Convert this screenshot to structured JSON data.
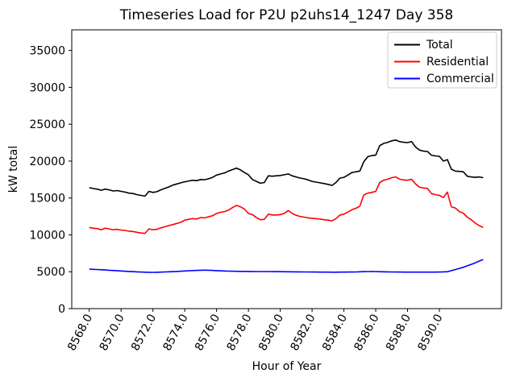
{
  "chart_data": {
    "type": "line",
    "title": "Timeseries Load for P2U p2uhs14_1247  Day 358",
    "xlabel": "Hour of Year",
    "ylabel": "kW total",
    "xlim": [
      8566.9,
      8593.9
    ],
    "ylim": [
      0,
      37800
    ],
    "grid": false,
    "legend_position": "upper right",
    "xtick_values": [
      8568,
      8570,
      8572,
      8574,
      8576,
      8578,
      8580,
      8582,
      8584,
      8586,
      8588,
      8590
    ],
    "xtick_labels": [
      "8568.0",
      "8570.0",
      "8572.0",
      "8574.0",
      "8576.0",
      "8578.0",
      "8580.0",
      "8582.0",
      "8584.0",
      "8586.0",
      "8588.0",
      "8590.0"
    ],
    "ytick_values": [
      0,
      5000,
      10000,
      15000,
      20000,
      25000,
      30000,
      35000
    ],
    "ytick_labels": [
      "0",
      "5000",
      "10000",
      "15000",
      "20000",
      "25000",
      "30000",
      "35000"
    ],
    "x": [
      8568.0,
      8568.25,
      8568.5,
      8568.75,
      8569.0,
      8569.25,
      8569.5,
      8569.75,
      8570.0,
      8570.25,
      8570.5,
      8570.75,
      8571.0,
      8571.25,
      8571.5,
      8571.75,
      8572.0,
      8572.25,
      8572.5,
      8572.75,
      8573.0,
      8573.25,
      8573.5,
      8573.75,
      8574.0,
      8574.25,
      8574.5,
      8574.75,
      8575.0,
      8575.25,
      8575.5,
      8575.75,
      8576.0,
      8576.25,
      8576.5,
      8576.75,
      8577.0,
      8577.25,
      8577.5,
      8577.75,
      8578.0,
      8578.25,
      8578.5,
      8578.75,
      8579.0,
      8579.25,
      8579.5,
      8579.75,
      8580.0,
      8580.25,
      8580.5,
      8580.75,
      8581.0,
      8581.25,
      8581.5,
      8581.75,
      8582.0,
      8582.25,
      8582.5,
      8582.75,
      8583.0,
      8583.25,
      8583.5,
      8583.75,
      8584.0,
      8584.25,
      8584.5,
      8584.75,
      8585.0,
      8585.25,
      8585.5,
      8585.75,
      8586.0,
      8586.25,
      8586.5,
      8586.75,
      8587.0,
      8587.25,
      8587.5,
      8587.75,
      8588.0,
      8588.25,
      8588.5,
      8588.75,
      8589.0,
      8589.25,
      8589.5,
      8589.75,
      8590.0,
      8590.25,
      8590.5,
      8590.75,
      8591.0,
      8591.25,
      8591.5,
      8591.75,
      8592.0,
      8592.25,
      8592.5,
      8592.75
    ],
    "series": [
      {
        "name": "Total",
        "color": "#000000",
        "values": [
          16400,
          16280,
          16200,
          16050,
          16200,
          16100,
          15950,
          16000,
          15900,
          15800,
          15650,
          15600,
          15450,
          15350,
          15250,
          15900,
          15750,
          15850,
          16100,
          16300,
          16500,
          16750,
          16900,
          17050,
          17200,
          17300,
          17400,
          17350,
          17500,
          17480,
          17600,
          17800,
          18100,
          18250,
          18400,
          18650,
          18850,
          19050,
          18800,
          18450,
          18150,
          17500,
          17250,
          17000,
          17100,
          18000,
          17950,
          18000,
          18050,
          18150,
          18250,
          18000,
          17850,
          17700,
          17600,
          17450,
          17250,
          17150,
          17050,
          16950,
          16850,
          16700,
          17100,
          17700,
          17800,
          18100,
          18450,
          18550,
          18650,
          19900,
          20600,
          20750,
          20800,
          22100,
          22400,
          22550,
          22750,
          22850,
          22650,
          22550,
          22500,
          22650,
          21900,
          21500,
          21350,
          21300,
          20800,
          20700,
          20650,
          20000,
          20200,
          18900,
          18650,
          18600,
          18550,
          17950,
          17850,
          17800,
          17850,
          17750
        ]
      },
      {
        "name": "Residential",
        "color": "#ff0000",
        "values": [
          11000,
          10900,
          10850,
          10700,
          10900,
          10800,
          10700,
          10750,
          10650,
          10600,
          10500,
          10450,
          10350,
          10250,
          10200,
          10800,
          10700,
          10750,
          10950,
          11100,
          11250,
          11400,
          11550,
          11700,
          12000,
          12100,
          12200,
          12150,
          12350,
          12300,
          12450,
          12600,
          12900,
          13050,
          13150,
          13350,
          13700,
          14000,
          13800,
          13500,
          12900,
          12750,
          12350,
          12050,
          12100,
          12800,
          12700,
          12700,
          12750,
          12900,
          13300,
          12900,
          12650,
          12500,
          12400,
          12300,
          12250,
          12200,
          12150,
          12050,
          12000,
          11900,
          12200,
          12700,
          12800,
          13100,
          13400,
          13600,
          13900,
          15400,
          15650,
          15750,
          15900,
          17100,
          17400,
          17550,
          17750,
          17850,
          17550,
          17450,
          17400,
          17550,
          16900,
          16450,
          16350,
          16300,
          15600,
          15450,
          15350,
          15050,
          15800,
          13800,
          13650,
          13150,
          12950,
          12400,
          12050,
          11600,
          11250,
          11000
        ]
      },
      {
        "name": "Commercial",
        "color": "#0000ff",
        "values": [
          5350,
          5320,
          5300,
          5270,
          5250,
          5200,
          5170,
          5150,
          5100,
          5070,
          5040,
          5010,
          4980,
          4960,
          4940,
          4930,
          4920,
          4930,
          4950,
          4970,
          4990,
          5010,
          5040,
          5070,
          5100,
          5130,
          5160,
          5180,
          5200,
          5210,
          5200,
          5180,
          5150,
          5120,
          5100,
          5080,
          5070,
          5060,
          5050,
          5050,
          5040,
          5040,
          5030,
          5030,
          5020,
          5020,
          5010,
          5010,
          5000,
          5000,
          4990,
          4990,
          4980,
          4980,
          4970,
          4970,
          4960,
          4960,
          4950,
          4950,
          4950,
          4940,
          4940,
          4950,
          4950,
          4960,
          4960,
          4970,
          4990,
          5010,
          5030,
          5040,
          5020,
          5000,
          4990,
          4980,
          4970,
          4960,
          4960,
          4950,
          4950,
          4950,
          4950,
          4950,
          4950,
          4950,
          4950,
          4950,
          4960,
          4980,
          5000,
          5150,
          5300,
          5450,
          5600,
          5800,
          6000,
          6200,
          6450,
          6650
        ]
      }
    ]
  }
}
